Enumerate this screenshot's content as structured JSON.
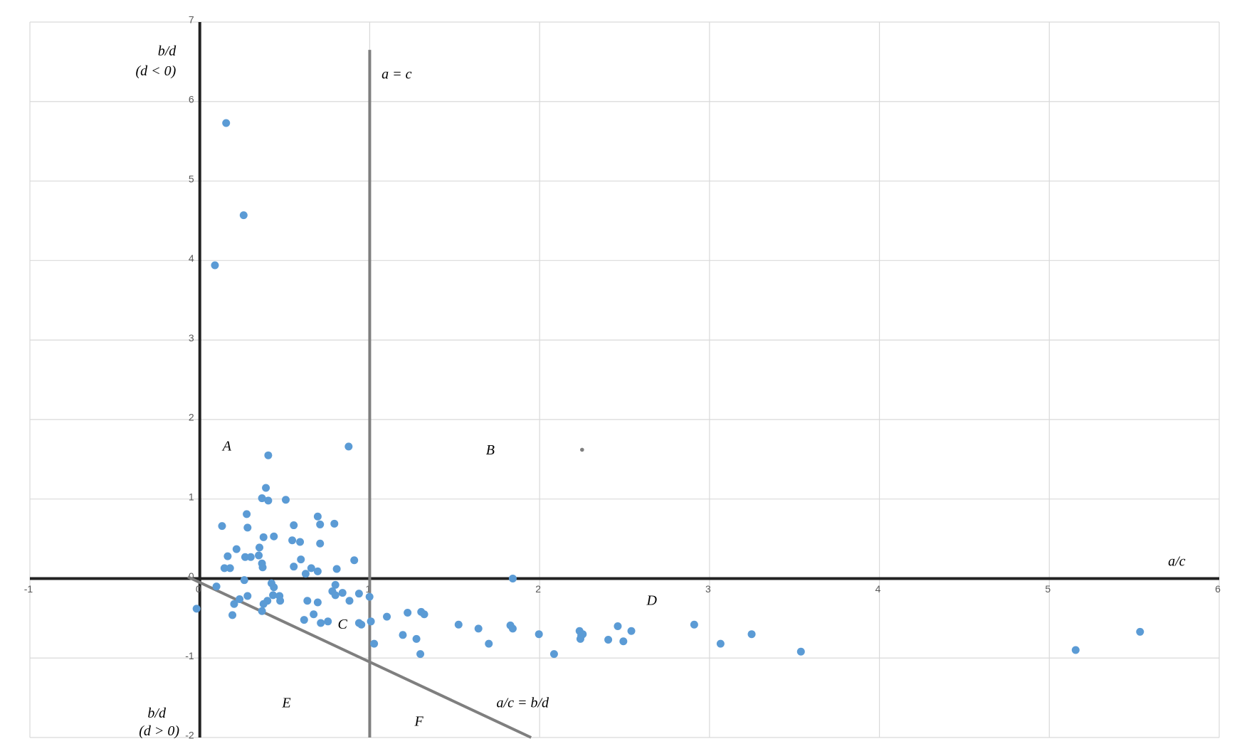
{
  "chart_data": {
    "type": "scatter",
    "xlim": [
      -1,
      6
    ],
    "ylim": [
      -2,
      7
    ],
    "xticks": [
      -1,
      0,
      1,
      2,
      3,
      4,
      5,
      6
    ],
    "yticks": [
      -2,
      -1,
      0,
      1,
      2,
      3,
      4,
      5,
      6,
      7
    ],
    "grid": true,
    "series": [
      {
        "color": "#5b9bd5",
        "x": [
          0.155,
          0.258,
          0.089,
          0.876,
          0.403,
          0.389,
          0.366,
          0.403,
          0.506,
          0.276,
          0.131,
          0.281,
          0.553,
          0.694,
          0.708,
          0.792,
          0.436,
          0.375,
          0.544,
          0.59,
          0.708,
          0.216,
          0.351,
          0.164,
          0.267,
          0.3,
          0.347,
          0.595,
          0.909,
          0.366,
          0.37,
          0.553,
          0.145,
          0.178,
          0.656,
          0.806,
          0.694,
          0.623,
          1.842,
          0.098,
          0.262,
          0.422,
          0.436,
          0.798,
          0.78,
          0.84,
          0.798,
          0.937,
          0.999,
          0.281,
          0.431,
          0.469,
          0.398,
          0.473,
          0.234,
          0.202,
          0.881,
          0.633,
          0.694,
          0.375,
          -0.019,
          0.366,
          0.192,
          0.67,
          0.614,
          0.754,
          0.712,
          1.101,
          1.223,
          1.303,
          1.321,
          0.937,
          0.951,
          1.007,
          1.523,
          1.64,
          1.828,
          1.842,
          1.996,
          2.235,
          2.254,
          2.24,
          2.245,
          2.404,
          2.46,
          2.493,
          2.54,
          1.195,
          1.275,
          1.701,
          1.026,
          2.085,
          1.298,
          2.91,
          3.065,
          3.248,
          3.538,
          5.155,
          5.534
        ],
        "values": [
          5.73,
          4.57,
          3.94,
          1.66,
          1.55,
          1.14,
          1.01,
          0.98,
          0.99,
          0.81,
          0.66,
          0.64,
          0.67,
          0.78,
          0.68,
          0.69,
          0.53,
          0.52,
          0.48,
          0.46,
          0.44,
          0.37,
          0.39,
          0.28,
          0.27,
          0.27,
          0.29,
          0.24,
          0.23,
          0.19,
          0.14,
          0.15,
          0.13,
          0.13,
          0.13,
          0.12,
          0.09,
          0.06,
          0.0,
          -0.1,
          -0.02,
          -0.06,
          -0.11,
          -0.08,
          -0.16,
          -0.18,
          -0.21,
          -0.19,
          -0.23,
          -0.22,
          -0.21,
          -0.22,
          -0.28,
          -0.28,
          -0.26,
          -0.32,
          -0.28,
          -0.28,
          -0.3,
          -0.32,
          -0.38,
          -0.41,
          -0.46,
          -0.45,
          -0.52,
          -0.54,
          -0.56,
          -0.48,
          -0.43,
          -0.42,
          -0.45,
          -0.56,
          -0.58,
          -0.54,
          -0.58,
          -0.63,
          -0.59,
          -0.63,
          -0.7,
          -0.66,
          -0.7,
          -0.76,
          -0.72,
          -0.77,
          -0.6,
          -0.79,
          -0.66,
          -0.71,
          -0.76,
          -0.82,
          -0.82,
          -0.95,
          -0.95,
          -0.58,
          -0.82,
          -0.7,
          -0.92,
          -0.9,
          -0.67
        ]
      },
      {
        "color": "#7f7f7f",
        "x": [
          2.25
        ],
        "values": [
          1.62
        ]
      }
    ],
    "reference_lines": [
      {
        "x": [
          1,
          1
        ],
        "values": [
          6.65,
          -2
        ]
      },
      {
        "x": [
          -0.07,
          1.95
        ],
        "values": [
          0.02,
          -2
        ]
      }
    ],
    "annotations": [
      "b/d",
      "(d < 0)",
      "a = c",
      "A",
      "B",
      "C",
      "D",
      "E",
      "F",
      "a/c = b/d",
      "a/c",
      "b/d",
      "(d > 0)"
    ]
  }
}
